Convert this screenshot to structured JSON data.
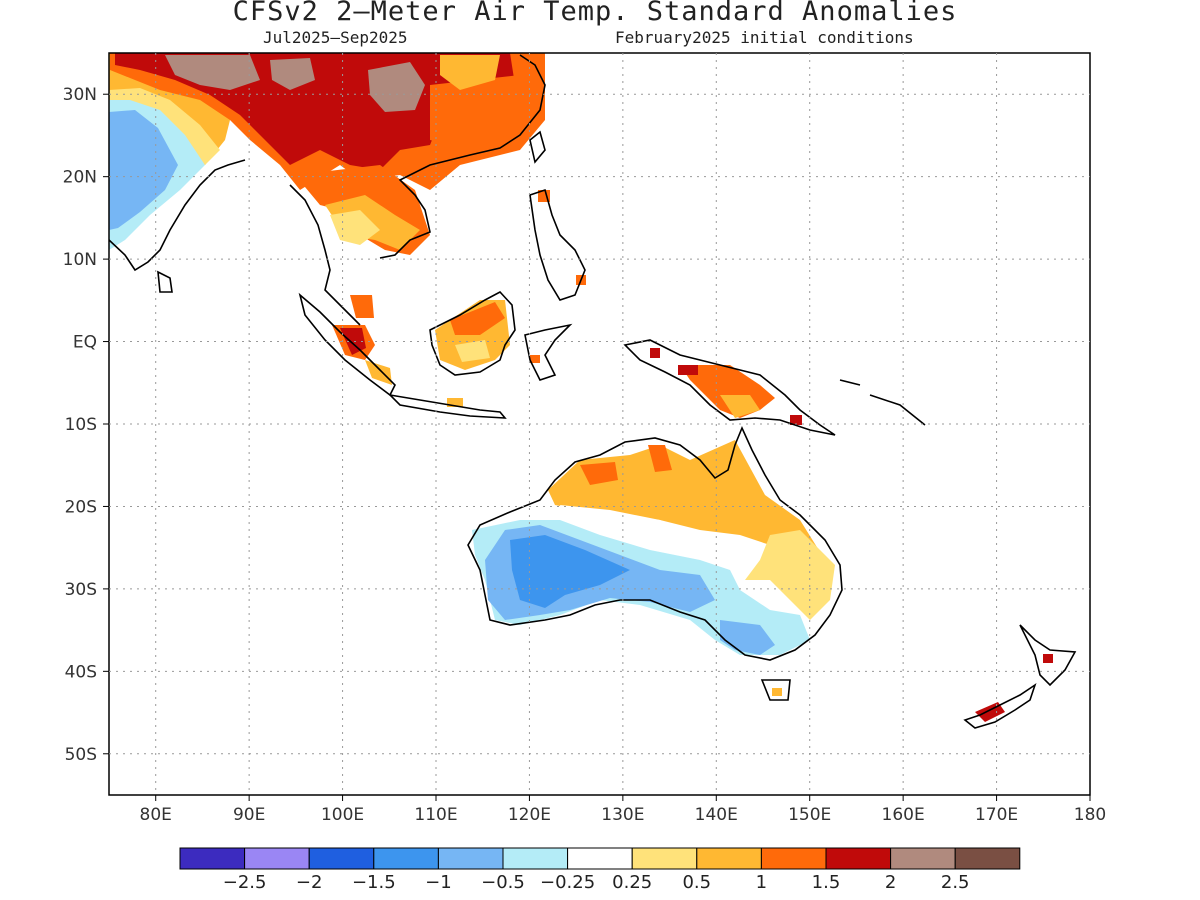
{
  "title": "CFSv2 2—Meter Air Temp. Standard Anomalies",
  "subtitle_left": "Jul2025—Sep2025",
  "subtitle_right": "February2025 initial conditions",
  "map": {
    "lon_range": [
      75,
      180
    ],
    "lat_range": [
      -55,
      35
    ],
    "lon_ticks": [
      {
        "value": 80,
        "label": "80E"
      },
      {
        "value": 90,
        "label": "90E"
      },
      {
        "value": 100,
        "label": "100E"
      },
      {
        "value": 110,
        "label": "110E"
      },
      {
        "value": 120,
        "label": "120E"
      },
      {
        "value": 130,
        "label": "130E"
      },
      {
        "value": 140,
        "label": "140E"
      },
      {
        "value": 150,
        "label": "150E"
      },
      {
        "value": 160,
        "label": "160E"
      },
      {
        "value": 170,
        "label": "170E"
      },
      {
        "value": 180,
        "label": "180"
      }
    ],
    "lat_ticks": [
      {
        "value": 30,
        "label": "30N"
      },
      {
        "value": 20,
        "label": "20N"
      },
      {
        "value": 10,
        "label": "10N"
      },
      {
        "value": 0,
        "label": "EQ"
      },
      {
        "value": -10,
        "label": "10S"
      },
      {
        "value": -20,
        "label": "20S"
      },
      {
        "value": -30,
        "label": "30S"
      },
      {
        "value": -40,
        "label": "40S"
      },
      {
        "value": -50,
        "label": "50S"
      }
    ],
    "grid": "dotted"
  },
  "colorbar": {
    "colors": [
      "#3c2bbf",
      "#9a86f4",
      "#1f5fe0",
      "#3d95ee",
      "#76b6f4",
      "#b4ecf7",
      "#ffffff",
      "#ffe27a",
      "#ffb832",
      "#ff6a0a",
      "#c00a0a",
      "#b08a7e",
      "#7a4f43"
    ],
    "labels": [
      "−2.5",
      "−2",
      "−1.5",
      "−1",
      "−0.5",
      "−0.25",
      "0.25",
      "0.5",
      "1",
      "1.5",
      "2",
      "2.5"
    ]
  }
}
